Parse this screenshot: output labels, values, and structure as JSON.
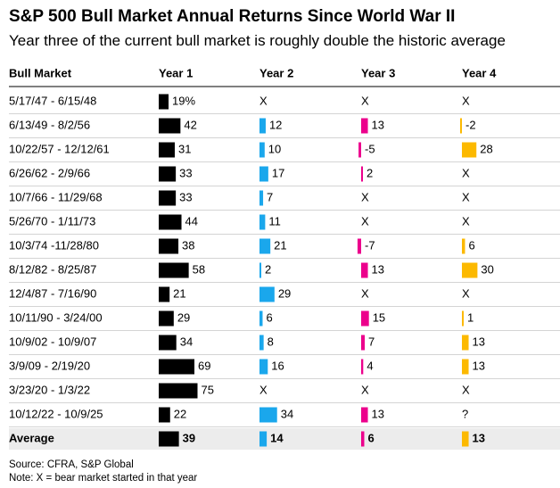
{
  "title": "S&P 500 Bull Market Annual Returns Since World War II",
  "subtitle": "Year three of the current bull market is roughly double the historic average",
  "source": "Source: CFRA, S&P Global",
  "note": "Note: X = bear market started in that year",
  "colors": {
    "year1": "#000000",
    "year2": "#1aa7ec",
    "year3": "#ec008c",
    "year4": "#fcb900",
    "average_row_bg": "#ececec"
  },
  "chart_data": {
    "type": "table",
    "columns": [
      "Bull Market",
      "Year 1",
      "Year 2",
      "Year 3",
      "Year 4"
    ],
    "rows": [
      {
        "period": "5/17/47 - 6/15/48",
        "values": [
          "19%",
          "X",
          "X",
          "X"
        ]
      },
      {
        "period": "6/13/49 - 8/2/56",
        "values": [
          "42",
          "12",
          "13",
          "-2"
        ]
      },
      {
        "period": "10/22/57 - 12/12/61",
        "values": [
          "31",
          "10",
          "-5",
          "28"
        ]
      },
      {
        "period": "6/26/62 - 2/9/66",
        "values": [
          "33",
          "17",
          "2",
          "X"
        ]
      },
      {
        "period": "10/7/66 - 11/29/68",
        "values": [
          "33",
          "7",
          "X",
          "X"
        ]
      },
      {
        "period": "5/26/70 - 1/11/73",
        "values": [
          "44",
          "11",
          "X",
          "X"
        ]
      },
      {
        "period": "10/3/74 -11/28/80",
        "values": [
          "38",
          "21",
          "-7",
          "6"
        ]
      },
      {
        "period": "8/12/82 - 8/25/87",
        "values": [
          "58",
          "2",
          "13",
          "30"
        ]
      },
      {
        "period": "12/4/87 - 7/16/90",
        "values": [
          "21",
          "29",
          "X",
          "X"
        ]
      },
      {
        "period": "10/11/90 - 3/24/00",
        "values": [
          "29",
          "6",
          "15",
          "1"
        ]
      },
      {
        "period": "10/9/02 - 10/9/07",
        "values": [
          "34",
          "8",
          "7",
          "13"
        ]
      },
      {
        "period": "3/9/09 - 2/19/20",
        "values": [
          "69",
          "16",
          "4",
          "13"
        ]
      },
      {
        "period": "3/23/20 - 1/3/22",
        "values": [
          "75",
          "X",
          "X",
          "X"
        ]
      },
      {
        "period": "10/12/22 - 10/9/25",
        "values": [
          "22",
          "34",
          "13",
          "?"
        ]
      }
    ],
    "average": {
      "period": "Average",
      "values": [
        "39",
        "14",
        "6",
        "13"
      ]
    }
  }
}
